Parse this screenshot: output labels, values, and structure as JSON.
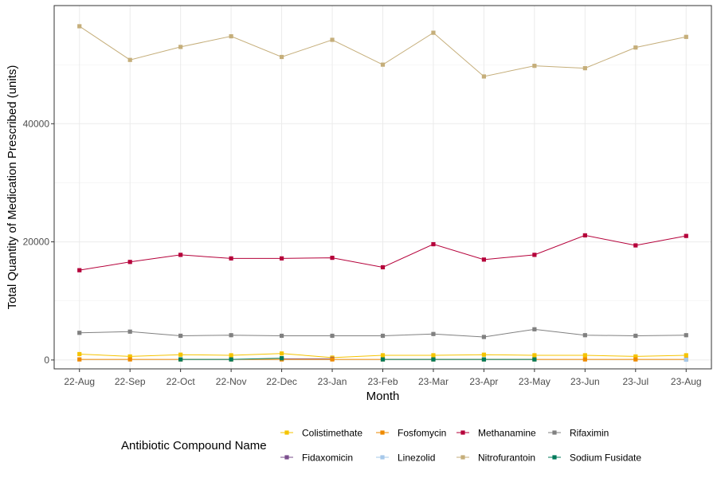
{
  "chart_data": {
    "type": "line",
    "title": "",
    "xlabel": "Month",
    "ylabel": "Total Quantity of Medication Prescribed (units)",
    "categories": [
      "22-Aug",
      "22-Sep",
      "22-Oct",
      "22-Nov",
      "22-Dec",
      "23-Jan",
      "23-Feb",
      "23-Mar",
      "23-Apr",
      "23-May",
      "23-Jun",
      "23-Jul",
      "23-Aug"
    ],
    "ylim": [
      -1500,
      60000
    ],
    "yticks": [
      0,
      20000,
      40000
    ],
    "grid": true,
    "legend": {
      "title": "Antibiotic Compound Name",
      "placement": "bottom"
    },
    "series": [
      {
        "name": "Colistimethate",
        "color": "#F5C400",
        "values": [
          1000,
          600,
          900,
          800,
          1100,
          400,
          800,
          800,
          900,
          800,
          800,
          600,
          800
        ]
      },
      {
        "name": "Fidaxomicin",
        "color": "#7B4F8E",
        "values": [
          null,
          null,
          null,
          null,
          200,
          200,
          null,
          null,
          null,
          null,
          null,
          null,
          null
        ]
      },
      {
        "name": "Fosfomycin",
        "color": "#EE8A00",
        "values": [
          100,
          100,
          100,
          100,
          100,
          100,
          100,
          100,
          100,
          100,
          100,
          100,
          100
        ]
      },
      {
        "name": "Linezolid",
        "color": "#A6C8EA",
        "values": [
          null,
          null,
          null,
          null,
          null,
          null,
          null,
          null,
          null,
          null,
          null,
          null,
          50
        ]
      },
      {
        "name": "Methanamine",
        "color": "#B5003A",
        "values": [
          15200,
          16600,
          17800,
          17200,
          17200,
          17300,
          15700,
          19600,
          17000,
          17800,
          21100,
          19400,
          21000
        ]
      },
      {
        "name": "Nitrofurantoin",
        "color": "#C5AE7A",
        "values": [
          56500,
          50800,
          53000,
          54800,
          51300,
          54200,
          50000,
          55400,
          48000,
          49800,
          49400,
          52900,
          54700
        ]
      },
      {
        "name": "Rifaximin",
        "color": "#808080",
        "values": [
          4600,
          4800,
          4100,
          4200,
          4100,
          4100,
          4100,
          4400,
          3900,
          5200,
          4200,
          4100,
          4200
        ]
      },
      {
        "name": "Sodium Fusidate",
        "color": "#007A5A",
        "values": [
          null,
          null,
          100,
          100,
          300,
          null,
          100,
          100,
          100,
          100,
          null,
          null,
          null
        ]
      }
    ]
  }
}
